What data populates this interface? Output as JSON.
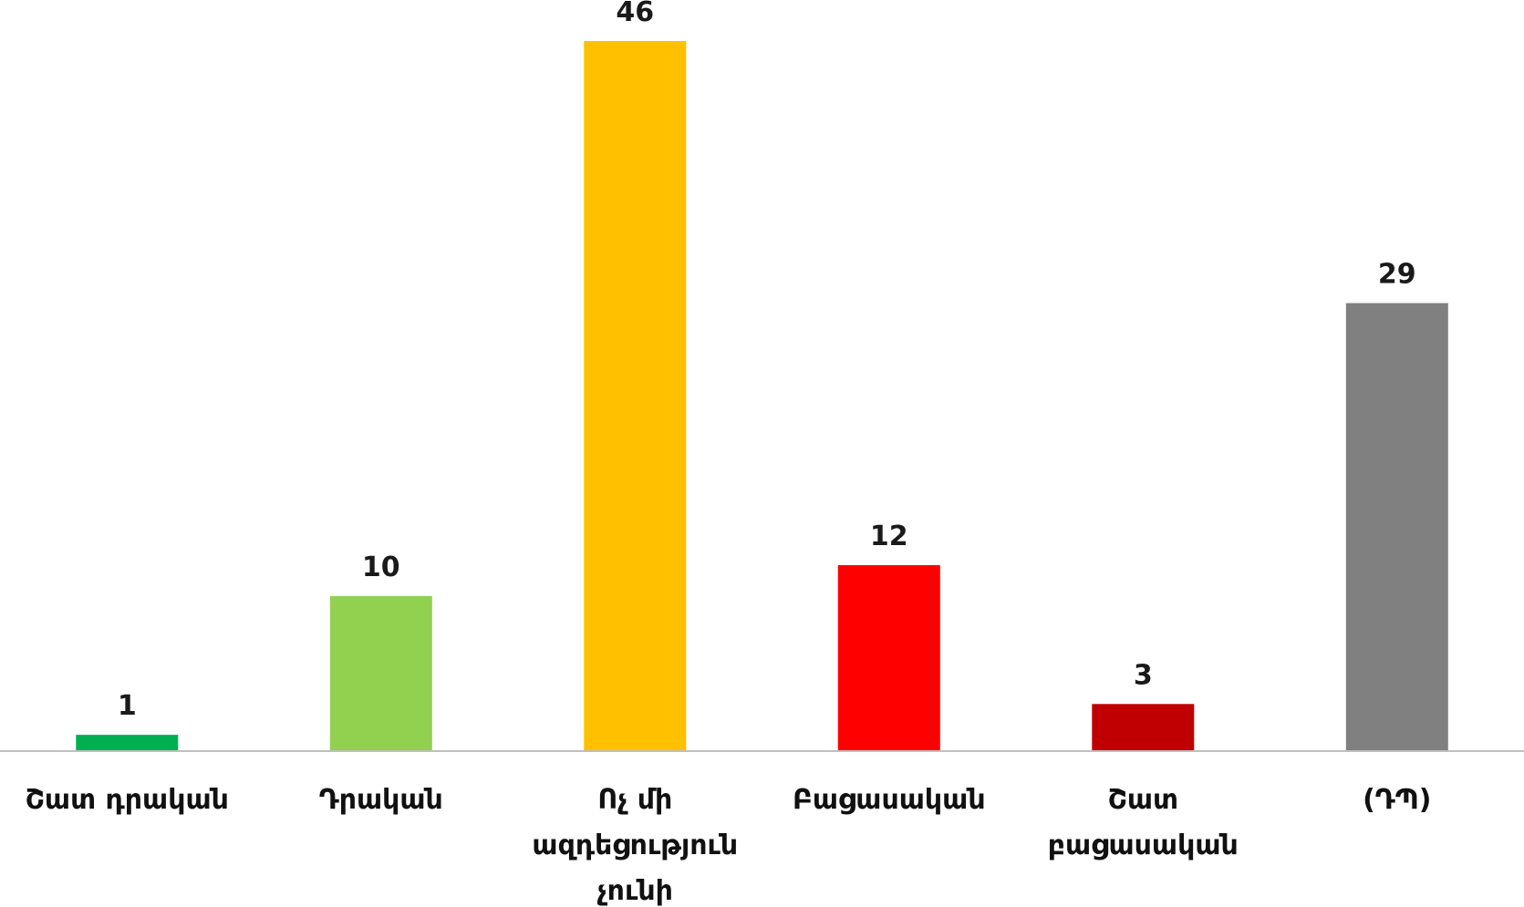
{
  "chart_data": {
    "type": "bar",
    "categories": [
      [
        "Շատ դրական"
      ],
      [
        "Դրական"
      ],
      [
        "Ոչ մի",
        "ազդեցություն",
        "չունի"
      ],
      [
        "Բացասական"
      ],
      [
        "Շատ",
        "բացասական"
      ],
      [
        "(ԴՊ)"
      ]
    ],
    "values": [
      1,
      10,
      46,
      12,
      3,
      29
    ],
    "colors": [
      "#00b050",
      "#92d050",
      "#ffc000",
      "#ff0000",
      "#c00000",
      "#808080"
    ],
    "title": "",
    "xlabel": "",
    "ylabel": "",
    "ylim": [
      0,
      46
    ],
    "grid": false,
    "legend": "none"
  }
}
